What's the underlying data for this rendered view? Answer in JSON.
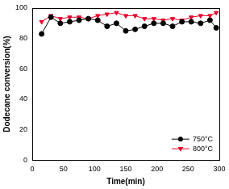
{
  "chart_data": {
    "type": "line",
    "x_label": "Time(min)",
    "y_label": "Dodecane conversion(%)",
    "x": [
      15,
      30,
      45,
      60,
      75,
      90,
      105,
      120,
      135,
      150,
      165,
      180,
      195,
      210,
      225,
      240,
      255,
      270,
      285,
      295
    ],
    "series": [
      {
        "name": "750°C",
        "color": "#000000",
        "marker": "circle",
        "line_style": "solid",
        "values": [
          83,
          94,
          90,
          91,
          92,
          93,
          92,
          88,
          90,
          85,
          86,
          88,
          90,
          90,
          88,
          91,
          91,
          90,
          92,
          87
        ]
      },
      {
        "name": "800°C",
        "color": "#e8002a",
        "marker": "triangle_down",
        "line_style": "solid",
        "values": [
          91,
          95,
          93,
          94,
          94,
          93,
          95,
          96,
          97,
          95,
          95,
          93,
          93,
          92,
          93,
          92,
          94,
          95,
          95,
          97
        ]
      }
    ],
    "xlim": [
      0,
      300
    ],
    "xticks": [
      0,
      50,
      100,
      150,
      200,
      250,
      300
    ],
    "ylim": [
      0,
      100
    ],
    "yticks": [
      0,
      20,
      40,
      60,
      80,
      100
    ],
    "grid": false,
    "legend": "lower right"
  }
}
